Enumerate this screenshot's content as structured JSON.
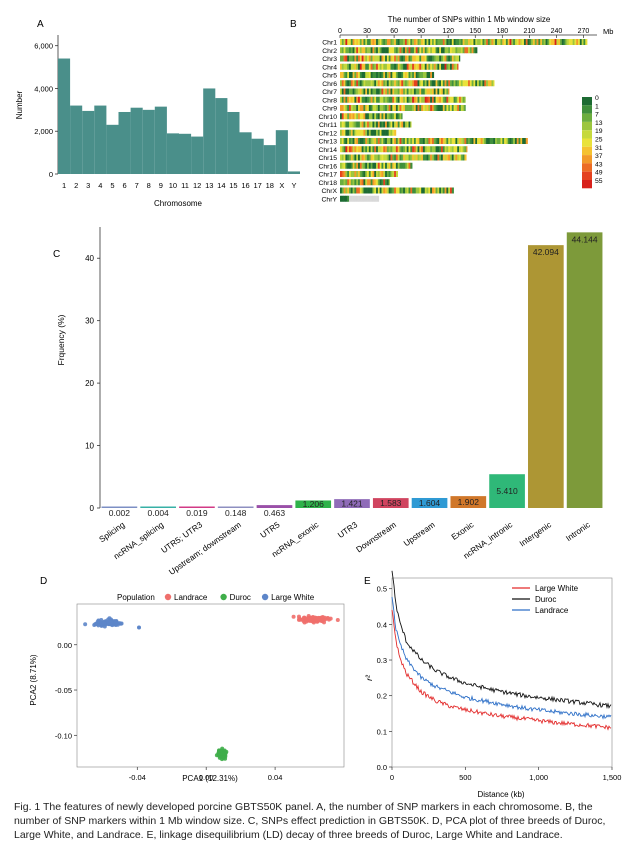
{
  "panels": {
    "A": "A",
    "B": "B",
    "C": "C",
    "D": "D",
    "E": "E"
  },
  "caption": "Fig. 1  The features of newly developed porcine GBTS50K panel.  A, the number of SNP markers in each chromosome.  B, the number of SNP markers within 1 Mb window size.  C, SNPs effect prediction in GBTS50K.  D, PCA plot of three breeds of Duroc, Large White, and Landrace.  E, linkage disequilibrium (LD) decay of three breeds of Duroc, Large White and Landrace.",
  "chart_data": [
    {
      "id": "A",
      "type": "bar",
      "title": "",
      "xlabel": "Chromosome",
      "ylabel": "Number",
      "categories": [
        "1",
        "2",
        "3",
        "4",
        "5",
        "6",
        "7",
        "8",
        "9",
        "10",
        "11",
        "12",
        "13",
        "14",
        "15",
        "16",
        "17",
        "18",
        "X",
        "Y"
      ],
      "values": [
        5400,
        3200,
        2950,
        3200,
        2300,
        2900,
        3100,
        3000,
        3150,
        1900,
        1880,
        1750,
        4000,
        3550,
        2900,
        1950,
        1650,
        1350,
        2050,
        120
      ],
      "ylim": [
        0,
        6500
      ],
      "yticks": [
        0,
        2000,
        4000,
        6000
      ],
      "ytick_labels": [
        "0",
        "2,000",
        "4,000",
        "6,000"
      ],
      "xtick_labels": [
        "1",
        "2",
        "3",
        "4",
        "5",
        "6",
        "7",
        "8",
        "9",
        "10",
        "11",
        "12",
        "13",
        "14",
        "15",
        "16",
        "17",
        "18",
        "X",
        "Y"
      ],
      "color": "#4a8f8a"
    },
    {
      "id": "B",
      "type": "heatmap",
      "title": "The number of SNPs within 1 Mb window size",
      "xunit": "Mb",
      "xlim": [
        0,
        285
      ],
      "xticks": [
        0,
        30,
        60,
        90,
        120,
        150,
        180,
        210,
        240,
        270
      ],
      "chromosomes": [
        {
          "name": "Chr1",
          "length": 274
        },
        {
          "name": "Chr2",
          "length": 152
        },
        {
          "name": "Chr3",
          "length": 133
        },
        {
          "name": "Chr4",
          "length": 131
        },
        {
          "name": "Chr5",
          "length": 104
        },
        {
          "name": "Chr6",
          "length": 171
        },
        {
          "name": "Chr7",
          "length": 121
        },
        {
          "name": "Chr8",
          "length": 139
        },
        {
          "name": "Chr9",
          "length": 139
        },
        {
          "name": "Chr10",
          "length": 69
        },
        {
          "name": "Chr11",
          "length": 79
        },
        {
          "name": "Chr12",
          "length": 62
        },
        {
          "name": "Chr13",
          "length": 208
        },
        {
          "name": "Chr14",
          "length": 141
        },
        {
          "name": "Chr15",
          "length": 140
        },
        {
          "name": "Chr16",
          "length": 80
        },
        {
          "name": "Chr17",
          "length": 64
        },
        {
          "name": "Chr18",
          "length": 55
        },
        {
          "name": "ChrX",
          "length": 126
        },
        {
          "name": "ChrY",
          "length": 43
        }
      ],
      "legend": {
        "labels": [
          "0",
          "1",
          "7",
          "13",
          "19",
          "25",
          "31",
          "37",
          "43",
          "49",
          "55"
        ],
        "colors": [
          "#1d6b33",
          "#3f8f3c",
          "#6cae3f",
          "#9cc63f",
          "#c6d93d",
          "#e9e23b",
          "#f5c231",
          "#f29a2a",
          "#ec6c25",
          "#e4411f",
          "#d8201b"
        ]
      }
    },
    {
      "id": "C",
      "type": "bar",
      "title": "",
      "xlabel": "",
      "ylabel": "Frquency (%)",
      "categories": [
        "Splicing",
        "ncRNA_splicing",
        "UTR5; UTR3",
        "Upstream; downstream",
        "UTR5",
        "ncRNA_exonic",
        "UTR3",
        "Downstream",
        "Upstream",
        "Exonic",
        "ncRNA_intronic",
        "Intergenic",
        "Intronic"
      ],
      "values": [
        0.002,
        0.004,
        0.019,
        0.148,
        0.463,
        1.206,
        1.421,
        1.583,
        1.604,
        1.902,
        5.41,
        42.094,
        44.144
      ],
      "value_labels": [
        "0.002",
        "0.004",
        "0.019",
        "0.148",
        "0.463",
        "1.206",
        "1.421",
        "1.583",
        "1.604",
        "1.902",
        "5.410",
        "42.094",
        "44.144"
      ],
      "colors": [
        "#7c8fc4",
        "#37b0a6",
        "#d23a86",
        "#8e8fc0",
        "#9a4fa8",
        "#2fb24a",
        "#8f6bb8",
        "#d0445f",
        "#2f9ad4",
        "#d0772a",
        "#2fb878",
        "#ad9634",
        "#7d9a3a"
      ],
      "ylim": [
        0,
        45
      ],
      "yticks": [
        0,
        10,
        20,
        30,
        40
      ],
      "ytick_labels": [
        "0",
        "10",
        "20",
        "30",
        "40"
      ]
    },
    {
      "id": "D",
      "type": "scatter",
      "title": "",
      "legend_title": "Population",
      "xlabel": "PCA1 (12.31%)",
      "ylabel": "PCA2 (8.71%)",
      "xlim": [
        -0.075,
        0.08
      ],
      "ylim": [
        -0.135,
        0.045
      ],
      "xticks": [
        -0.04,
        0.0,
        0.04
      ],
      "xtick_labels": [
        "-0.04",
        "0.00",
        "0.04"
      ],
      "yticks": [
        0.0,
        -0.05,
        -0.1
      ],
      "ytick_labels": [
        "0.00",
        "-0.05",
        "-0.10"
      ],
      "series": [
        {
          "name": "Landrace",
          "color": "#ef6f6c",
          "center": [
            0.062,
            0.028
          ],
          "spread": [
            0.008,
            0.003
          ]
        },
        {
          "name": "Duroc",
          "color": "#3fae4a",
          "center": [
            0.009,
            -0.12
          ],
          "spread": [
            0.002,
            0.004
          ]
        },
        {
          "name": "Large White",
          "color": "#5d86c9",
          "center": [
            -0.057,
            0.024
          ],
          "spread": [
            0.006,
            0.003
          ]
        }
      ]
    },
    {
      "id": "E",
      "type": "line",
      "title": "",
      "xlabel": "Distance (kb)",
      "ylabel": "r²",
      "xlim": [
        0,
        1500
      ],
      "ylim": [
        0,
        0.53
      ],
      "xticks": [
        0,
        500,
        1000,
        1500
      ],
      "xtick_labels": [
        "0",
        "500",
        "1,000",
        "1,500"
      ],
      "yticks": [
        0,
        0.1,
        0.2,
        0.3,
        0.4,
        0.5
      ],
      "ytick_labels": [
        "0.0",
        "0.1",
        "0.2",
        "0.3",
        "0.4",
        "0.5"
      ],
      "x": [
        2,
        25,
        50,
        100,
        200,
        300,
        400,
        500,
        700,
        900,
        1100,
        1300,
        1500
      ],
      "series": [
        {
          "name": "Large White",
          "color": "#e32b2b",
          "values": [
            0.44,
            0.36,
            0.31,
            0.26,
            0.21,
            0.185,
            0.17,
            0.16,
            0.145,
            0.135,
            0.125,
            0.118,
            0.11
          ]
        },
        {
          "name": "Duroc",
          "color": "#111111",
          "values": [
            0.55,
            0.46,
            0.41,
            0.35,
            0.3,
            0.27,
            0.25,
            0.235,
            0.215,
            0.2,
            0.19,
            0.18,
            0.17
          ]
        },
        {
          "name": "Landrace",
          "color": "#2d6fc7",
          "values": [
            0.48,
            0.39,
            0.35,
            0.3,
            0.25,
            0.225,
            0.21,
            0.195,
            0.18,
            0.165,
            0.155,
            0.147,
            0.14
          ]
        }
      ]
    }
  ]
}
